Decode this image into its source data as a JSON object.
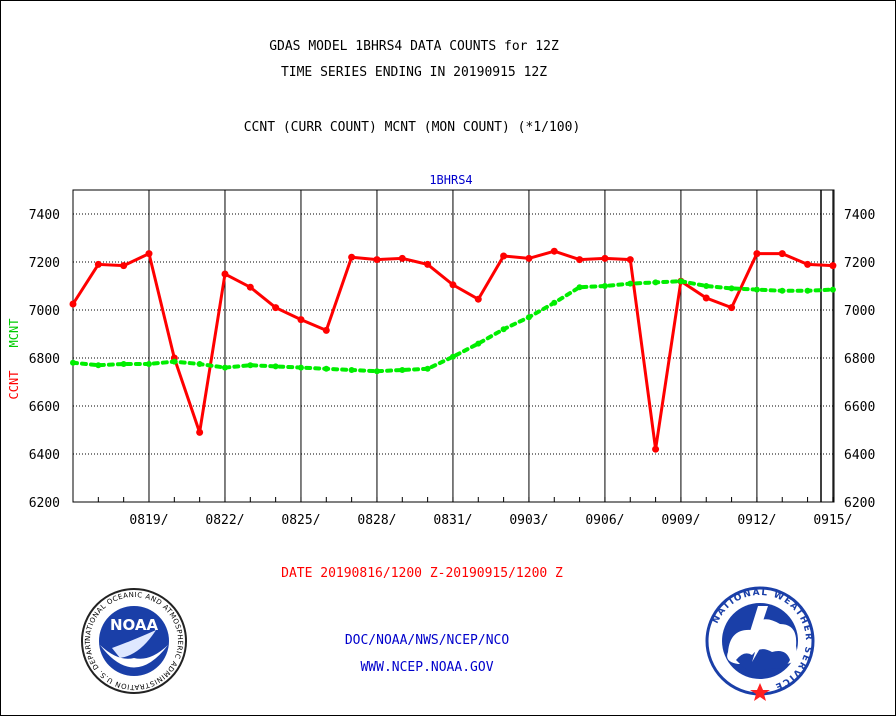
{
  "header": {
    "title_line1": "GDAS MODEL 1BHRS4 DATA COUNTS for 12Z",
    "title_line2": "TIME SERIES ENDING IN 20190915 12Z",
    "subtitle": "CCNT (CURR COUNT) MCNT (MON COUNT) (*1/100)"
  },
  "chart_data": {
    "type": "line",
    "title": "1BHRS4",
    "ylabel_curr": "CCNT",
    "ylabel_mon": "MCNT",
    "ylim": [
      6200,
      7500
    ],
    "yticks": [
      "7400",
      "7200",
      "7000",
      "6800",
      "6600",
      "6400",
      "6200"
    ],
    "xtick_labels": [
      "0819/",
      "0822/",
      "0825/",
      "0828/",
      "0831/",
      "0903/",
      "0906/",
      "0909/",
      "0912/",
      "0915/"
    ],
    "grid": true,
    "x_dates": [
      "0816",
      "0817",
      "0818",
      "0819",
      "0820",
      "0821",
      "0822",
      "0823",
      "0824",
      "0825",
      "0826",
      "0827",
      "0828",
      "0829",
      "0830",
      "0831",
      "0901",
      "0902",
      "0903",
      "0904",
      "0905",
      "0906",
      "0907",
      "0908",
      "0909",
      "0910",
      "0911",
      "0912",
      "0913",
      "0914",
      "0915"
    ],
    "series": [
      {
        "name": "CCNT",
        "color": "#ff0000",
        "style": "solid",
        "values": [
          7025,
          7190,
          7185,
          7235,
          6800,
          6490,
          7150,
          7095,
          7010,
          6960,
          6915,
          7220,
          7210,
          7215,
          7190,
          7105,
          7045,
          7225,
          7215,
          7245,
          7210,
          7215,
          7210,
          6420,
          7120,
          7050,
          7010,
          7235,
          7235,
          7190,
          7185
        ]
      },
      {
        "name": "MCNT",
        "color": "#00ee00",
        "style": "dotted",
        "values": [
          6780,
          6770,
          6775,
          6775,
          6785,
          6775,
          6760,
          6770,
          6765,
          6760,
          6755,
          6750,
          6745,
          6750,
          6755,
          6805,
          6860,
          6920,
          6970,
          7030,
          7095,
          7100,
          7110,
          7115,
          7120,
          7100,
          7090,
          7085,
          7080,
          7080,
          7085
        ]
      }
    ]
  },
  "footer": {
    "date_range": "DATE 20190816/1200 Z-20190915/1200 Z",
    "org_line": "DOC/NOAA/NWS/NCEP/NCO",
    "url": "WWW.NCEP.NOAA.GOV"
  },
  "logos": {
    "noaa_left": {
      "center_text": "NOAA",
      "ring_text": "NATIONAL OCEANIC AND ATMOSPHERIC ADMINISTRATION U.S. DEPARTMENT OF COMMERCE"
    },
    "nws_right": {
      "ring_text": "NATIONAL WEATHER SERVICE"
    }
  },
  "colors": {
    "curr": "#ff0000",
    "mon": "#00ee00",
    "blue": "#0000cc",
    "text": "#000000"
  }
}
